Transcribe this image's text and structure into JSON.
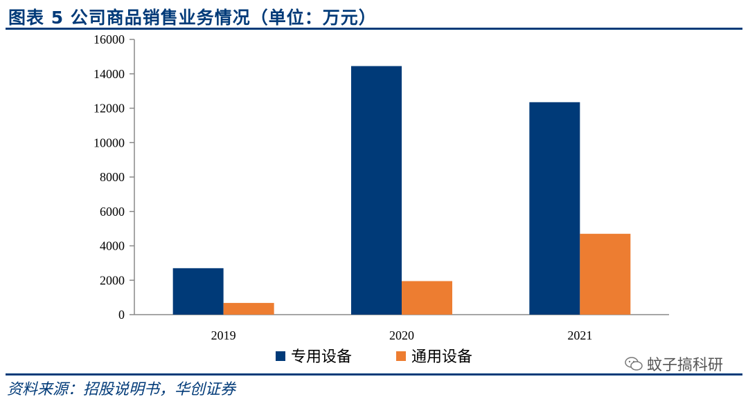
{
  "header": {
    "title": "图表 5   公司商品销售业务情况（单位：万元）"
  },
  "footer": {
    "source": "资料来源：招股说明书，华创证券"
  },
  "watermark": {
    "text": "蚊子搞科研",
    "icon": "wechat-icon"
  },
  "colors": {
    "primary": "#003a78",
    "series1": "#003a78",
    "series2": "#ed7d31"
  },
  "chart_data": {
    "type": "bar",
    "categories": [
      "2019",
      "2020",
      "2021"
    ],
    "series": [
      {
        "name": "专用设备",
        "values": [
          2700,
          14450,
          12350
        ],
        "color": "#003a78"
      },
      {
        "name": "通用设备",
        "values": [
          680,
          1950,
          4700
        ],
        "color": "#ed7d31"
      }
    ],
    "ylim": [
      0,
      16000
    ],
    "yticks": [
      0,
      2000,
      4000,
      6000,
      8000,
      10000,
      12000,
      14000,
      16000
    ],
    "legend": "bottom",
    "grid": false
  }
}
